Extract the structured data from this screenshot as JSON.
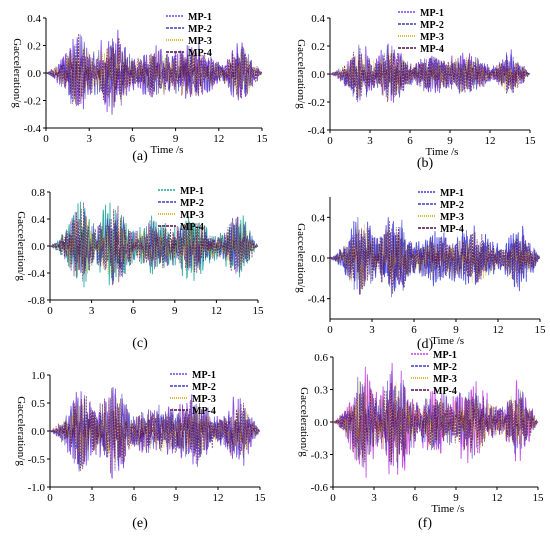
{
  "chart_data": [
    {
      "type": "line",
      "panel_label": "(a)",
      "xlabel": "Time /s",
      "ylabel": "Gacceleration/g",
      "xlim": [
        0,
        15
      ],
      "ylim": [
        -0.4,
        0.4
      ],
      "x_ticks": [
        0,
        3,
        6,
        9,
        12,
        15
      ],
      "y_ticks": [
        -0.4,
        -0.2,
        0.0,
        0.2,
        0.4
      ],
      "y_tick_labels": [
        "-0.4",
        "-0.2",
        "0.0",
        "0.2",
        "0.4"
      ],
      "legend_position": "top-right",
      "series": [
        {
          "name": "MP-1",
          "color": "#7b3fe4",
          "peak": 0.28
        },
        {
          "name": "MP-2",
          "color": "#3f3fbf",
          "peak": 0.25
        },
        {
          "name": "MP-3",
          "color": "#d4a000",
          "peak": 0.22
        },
        {
          "name": "MP-4",
          "color": "#5a0a4a",
          "peak": 0.24
        }
      ]
    },
    {
      "type": "line",
      "panel_label": "(b)",
      "xlabel": "Time /s",
      "ylabel": "Gacceleration/g",
      "xlim": [
        0,
        15
      ],
      "ylim": [
        -0.4,
        0.4
      ],
      "x_ticks": [
        0,
        3,
        6,
        9,
        12,
        15
      ],
      "y_ticks": [
        -0.4,
        -0.2,
        0.0,
        0.2,
        0.4
      ],
      "y_tick_labels": [
        "-0.4",
        "-0.2",
        "0.0",
        "0.2",
        "0.4"
      ],
      "legend_position": "top-right",
      "series": [
        {
          "name": "MP-1",
          "color": "#7b3fe4",
          "peak": 0.2
        },
        {
          "name": "MP-2",
          "color": "#3f3fbf",
          "peak": 0.18
        },
        {
          "name": "MP-3",
          "color": "#d4a000",
          "peak": 0.16
        },
        {
          "name": "MP-4",
          "color": "#5a0a4a",
          "peak": 0.17
        }
      ]
    },
    {
      "type": "line",
      "panel_label": "(c)",
      "xlabel": "",
      "ylabel": "Gacceleration/g",
      "xlim": [
        0,
        15
      ],
      "ylim": [
        -0.8,
        0.8
      ],
      "x_ticks": [
        0,
        3,
        6,
        9,
        12,
        15
      ],
      "y_ticks": [
        -0.8,
        -0.4,
        0.0,
        0.4,
        0.8
      ],
      "y_tick_labels": [
        "-0.8",
        "-0.4",
        "0.0",
        "0.4",
        "0.8"
      ],
      "legend_position": "top-right",
      "series": [
        {
          "name": "MP-1",
          "color": "#1aa59b",
          "peak": 0.62
        },
        {
          "name": "MP-2",
          "color": "#3f3fbf",
          "peak": 0.5
        },
        {
          "name": "MP-3",
          "color": "#d4a000",
          "peak": 0.45
        },
        {
          "name": "MP-4",
          "color": "#5a0a4a",
          "peak": 0.55
        }
      ]
    },
    {
      "type": "line",
      "panel_label": "(d)",
      "xlabel": "Time /s",
      "ylabel": "Gacceleration/g",
      "xlim": [
        0,
        15
      ],
      "ylim": [
        -0.6,
        0.6
      ],
      "x_ticks": [
        0,
        3,
        6,
        9,
        12,
        15
      ],
      "y_ticks": [
        -0.4,
        0.0,
        0.4
      ],
      "y_tick_labels": [
        "-0.4",
        "0.0",
        "0.4"
      ],
      "legend_position": "top-right",
      "series": [
        {
          "name": "MP-1",
          "color": "#3f3fe4",
          "peak": 0.4
        },
        {
          "name": "MP-2",
          "color": "#3f3fbf",
          "peak": 0.35
        },
        {
          "name": "MP-3",
          "color": "#d4a000",
          "peak": 0.3
        },
        {
          "name": "MP-4",
          "color": "#5a0a4a",
          "peak": 0.32
        }
      ]
    },
    {
      "type": "line",
      "panel_label": "(e)",
      "xlabel": "",
      "ylabel": "Gacceleration/g",
      "xlim": [
        0,
        15
      ],
      "ylim": [
        -1.0,
        1.0
      ],
      "x_ticks": [
        0,
        3,
        6,
        9,
        12,
        15
      ],
      "y_ticks": [
        -1.0,
        -0.5,
        0.0,
        0.5,
        1.0
      ],
      "y_tick_labels": [
        "-1.0",
        "-0.5",
        "0.0",
        "0.5",
        "1.0"
      ],
      "legend_position": "top-right",
      "series": [
        {
          "name": "MP-1",
          "color": "#7b3fe4",
          "peak": 0.8
        },
        {
          "name": "MP-2",
          "color": "#3f3fbf",
          "peak": 0.65
        },
        {
          "name": "MP-3",
          "color": "#d4a000",
          "peak": 0.55
        },
        {
          "name": "MP-4",
          "color": "#5a0a4a",
          "peak": 0.7
        }
      ]
    },
    {
      "type": "line",
      "panel_label": "(f)",
      "xlabel": "Time /s",
      "ylabel": "Gacceleration/g",
      "xlim": [
        0,
        15
      ],
      "ylim": [
        -0.6,
        0.6
      ],
      "x_ticks": [
        0,
        3,
        6,
        9,
        12,
        15
      ],
      "y_ticks": [
        -0.6,
        -0.3,
        0.0,
        0.3,
        0.6
      ],
      "y_tick_labels": [
        "-0.6",
        "-0.3",
        "0.0",
        "0.3",
        "0.6"
      ],
      "legend_position": "top-right",
      "series": [
        {
          "name": "MP-1",
          "color": "#c040e0",
          "peak": 0.48
        },
        {
          "name": "MP-2",
          "color": "#3f3fbf",
          "peak": 0.4
        },
        {
          "name": "MP-3",
          "color": "#d4a000",
          "peak": 0.35
        },
        {
          "name": "MP-4",
          "color": "#5a0a4a",
          "peak": 0.38
        }
      ]
    }
  ]
}
